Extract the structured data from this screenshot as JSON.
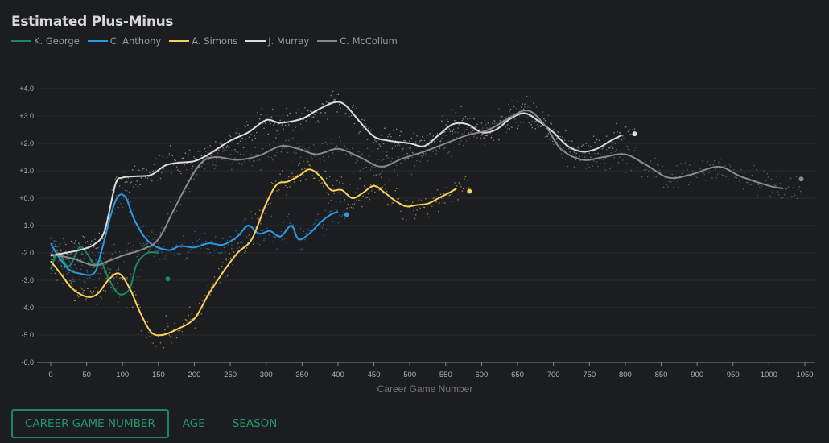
{
  "chart_data": {
    "type": "line",
    "title": "Estimated Plus-Minus",
    "xlabel": "Career Game Number",
    "ylabel": "",
    "xlim": [
      0,
      1050
    ],
    "ylim": [
      -6,
      4
    ],
    "xticks": [
      0,
      50,
      100,
      150,
      200,
      250,
      300,
      350,
      400,
      450,
      500,
      550,
      600,
      650,
      700,
      750,
      800,
      850,
      900,
      950,
      1000,
      1050
    ],
    "yticks": [
      "-6.0",
      "-5.0",
      "-4.0",
      "-3.0",
      "-2.0",
      "-1.0",
      "+0.0",
      "+1.0",
      "+2.0",
      "+3.0",
      "+4.0"
    ],
    "grid": true,
    "legend_position": "top-left",
    "series": [
      {
        "name": "K. George",
        "color": "#1a8a5e",
        "x": [
          0,
          10,
          25,
          40,
          50,
          60,
          70,
          80,
          95,
          110,
          120,
          135,
          150
        ],
        "y": [
          -2.6,
          -2.0,
          -2.5,
          -1.8,
          -2.0,
          -2.4,
          -2.3,
          -2.9,
          -3.5,
          -3.3,
          -2.4,
          -2.0,
          -2.0
        ],
        "last": [
          163,
          -2.95
        ]
      },
      {
        "name": "C. Anthony",
        "color": "#2d97e0",
        "x": [
          0,
          10,
          25,
          40,
          60,
          70,
          85,
          95,
          105,
          115,
          130,
          145,
          165,
          180,
          200,
          220,
          240,
          260,
          275,
          290,
          305,
          320,
          335,
          345,
          360,
          375,
          390,
          400
        ],
        "y": [
          -1.65,
          -2.1,
          -2.6,
          -2.75,
          -2.75,
          -2.0,
          -0.5,
          0.1,
          0.0,
          -0.7,
          -1.4,
          -1.75,
          -1.9,
          -1.75,
          -1.8,
          -1.65,
          -1.7,
          -1.4,
          -1.0,
          -1.3,
          -1.2,
          -1.4,
          -1.0,
          -1.5,
          -1.3,
          -0.9,
          -0.6,
          -0.5
        ],
        "last": [
          412,
          -0.6
        ]
      },
      {
        "name": "A. Simons",
        "color": "#f5d05a",
        "x": [
          0,
          15,
          30,
          50,
          65,
          80,
          95,
          110,
          125,
          140,
          155,
          175,
          200,
          220,
          240,
          260,
          280,
          300,
          315,
          330,
          345,
          360,
          375,
          390,
          405,
          420,
          435,
          450,
          465,
          480,
          495,
          510,
          525,
          540,
          555,
          565
        ],
        "y": [
          -2.3,
          -2.8,
          -3.3,
          -3.6,
          -3.5,
          -3.0,
          -2.75,
          -3.3,
          -4.2,
          -4.9,
          -5.0,
          -4.8,
          -4.4,
          -3.5,
          -2.7,
          -2.0,
          -1.5,
          -0.2,
          0.5,
          0.6,
          0.8,
          1.05,
          0.8,
          0.3,
          0.3,
          0.0,
          0.2,
          0.45,
          0.2,
          -0.1,
          -0.3,
          -0.25,
          -0.2,
          0.0,
          0.2,
          0.35
        ],
        "last": [
          583,
          0.25
        ]
      },
      {
        "name": "J. Murray",
        "color": "#dcdcdc",
        "x": [
          0,
          20,
          40,
          60,
          75,
          90,
          100,
          120,
          140,
          160,
          180,
          200,
          220,
          250,
          275,
          300,
          320,
          350,
          370,
          395,
          410,
          430,
          450,
          470,
          500,
          520,
          540,
          560,
          580,
          600,
          620,
          640,
          660,
          680,
          700,
          720,
          740,
          760,
          780,
          795
        ],
        "y": [
          -2.1,
          -2.0,
          -1.9,
          -1.7,
          -1.2,
          0.5,
          0.75,
          0.8,
          0.85,
          1.2,
          1.3,
          1.35,
          1.6,
          2.1,
          2.4,
          2.85,
          2.75,
          2.9,
          3.2,
          3.5,
          3.4,
          2.8,
          2.25,
          2.1,
          2.0,
          1.9,
          2.3,
          2.7,
          2.7,
          2.4,
          2.5,
          2.9,
          3.1,
          2.8,
          2.4,
          1.9,
          1.7,
          1.8,
          2.1,
          2.3
        ],
        "last": [
          813,
          2.35
        ]
      },
      {
        "name": "C. McCollum",
        "color": "#8a8a8a",
        "x": [
          0,
          30,
          60,
          80,
          100,
          130,
          150,
          170,
          190,
          210,
          230,
          260,
          290,
          320,
          345,
          370,
          400,
          430,
          460,
          490,
          520,
          550,
          580,
          610,
          640,
          665,
          690,
          710,
          740,
          770,
          800,
          830,
          860,
          890,
          930,
          960,
          1000,
          1020
        ],
        "y": [
          -2.05,
          -2.2,
          -2.45,
          -2.3,
          -2.1,
          -1.85,
          -1.5,
          -0.5,
          0.5,
          1.3,
          1.5,
          1.4,
          1.55,
          1.9,
          1.8,
          1.6,
          1.8,
          1.5,
          1.15,
          1.45,
          1.7,
          2.0,
          2.3,
          2.5,
          2.95,
          3.2,
          2.6,
          1.8,
          1.4,
          1.5,
          1.6,
          1.2,
          0.75,
          0.85,
          1.15,
          0.8,
          0.45,
          0.35
        ],
        "last": [
          1045,
          0.7
        ]
      }
    ]
  },
  "tabs": [
    {
      "label": "CAREER GAME NUMBER",
      "active": true
    },
    {
      "label": "AGE",
      "active": false
    },
    {
      "label": "SEASON",
      "active": false
    }
  ]
}
